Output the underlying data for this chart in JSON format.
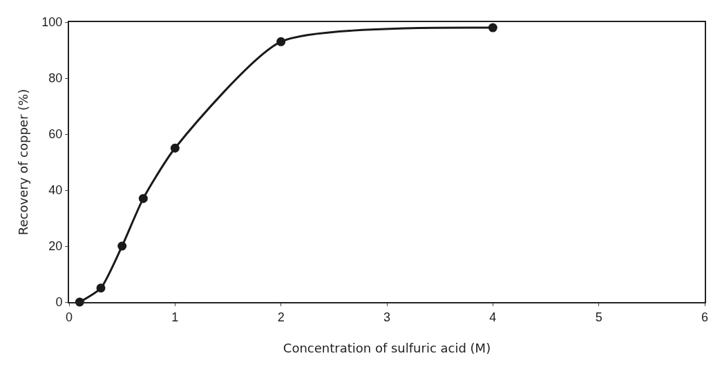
{
  "chart_data": {
    "type": "line",
    "xlabel": "Concentration of sulfuric acid (M)",
    "ylabel": "Recovery of copper (%)",
    "x": [
      0.1,
      0.3,
      0.5,
      0.7,
      1,
      2,
      4
    ],
    "series": [
      {
        "color": "#1a1a1a",
        "values": [
          0,
          5,
          20,
          37,
          55,
          93,
          98
        ]
      }
    ],
    "xlim": [
      0,
      6
    ],
    "xticks": [
      0,
      1,
      2,
      3,
      4,
      5,
      6
    ],
    "ylim": [
      0,
      100
    ],
    "yticks": [
      0,
      20,
      40,
      60,
      80,
      100
    ],
    "legend": false,
    "marker": "circle",
    "line_style": "solid"
  }
}
